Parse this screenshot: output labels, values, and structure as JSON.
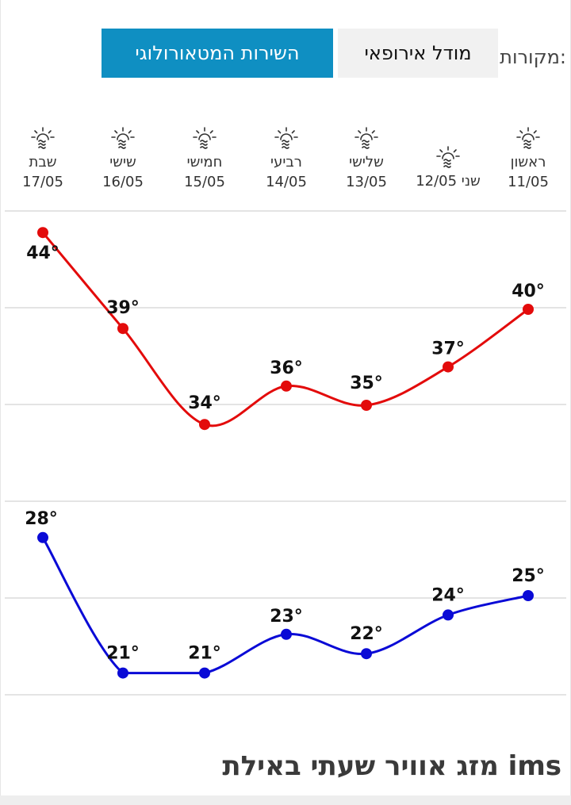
{
  "sources": {
    "label": "מקורות:",
    "options": [
      "מודל אירופאי",
      "השירות המטאורולוגי"
    ],
    "active_index": 1,
    "active_color": "#0f8fc2"
  },
  "days": [
    {
      "name": "ראשון",
      "date": "11/05",
      "icon": "sun-haze-icon"
    },
    {
      "name": "שני",
      "date": "12/05",
      "icon": "sun-haze-icon"
    },
    {
      "name": "שלישי",
      "date": "13/05",
      "icon": "sun-haze-icon"
    },
    {
      "name": "רביעי",
      "date": "14/05",
      "icon": "sun-haze-icon"
    },
    {
      "name": "חמישי",
      "date": "15/05",
      "icon": "sun-haze-icon"
    },
    {
      "name": "שישי",
      "date": "16/05",
      "icon": "sun-haze-icon"
    },
    {
      "name": "שבת",
      "date": "17/05",
      "icon": "sun-haze-icon"
    }
  ],
  "chart_data": {
    "type": "line",
    "x": [
      "11/05",
      "12/05",
      "13/05",
      "14/05",
      "15/05",
      "16/05",
      "17/05"
    ],
    "series": [
      {
        "values": [
          40,
          37,
          35,
          36,
          34,
          39,
          44
        ],
        "color": "#e30b0b"
      },
      {
        "values": [
          25,
          24,
          22,
          23,
          21,
          21,
          28
        ],
        "color": "#0a0ad6"
      }
    ],
    "unit": "°",
    "grid": true
  },
  "title": "מזג אוויר שעתי באילת ims"
}
